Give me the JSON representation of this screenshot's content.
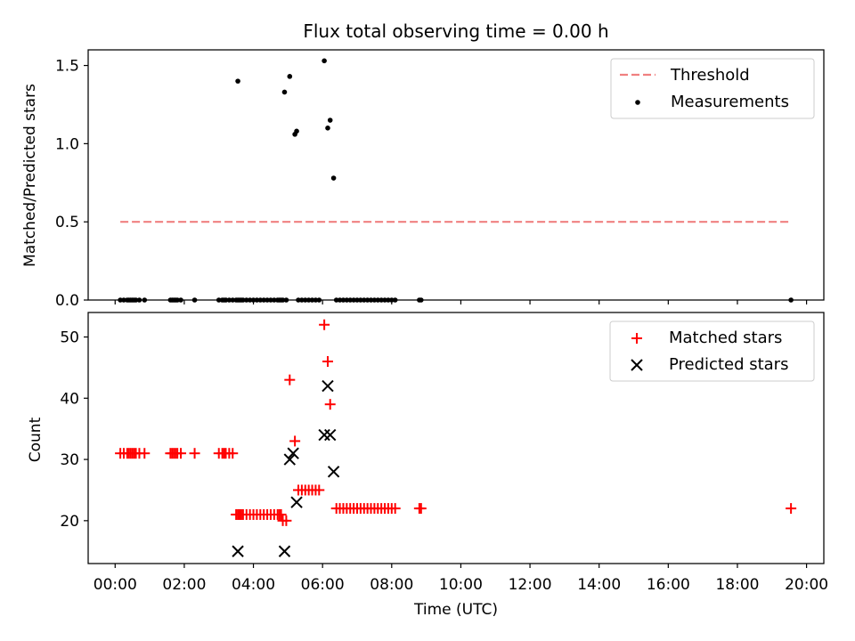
{
  "figure": {
    "title": "Flux total observing time = 0.00 h"
  },
  "chart_data": [
    {
      "type": "scatter",
      "ylabel": "Matched/Predicted stars",
      "xlabel": "",
      "xlim": [
        -0.78,
        20.5
      ],
      "ylim": [
        0,
        1.6
      ],
      "yticks": [
        0.0,
        0.5,
        1.0,
        1.5
      ],
      "ytick_labels": [
        "0.0",
        "0.5",
        "1.0",
        "1.5"
      ],
      "legend_position": "top-right",
      "threshold": {
        "name": "Threshold",
        "y": 0.5,
        "x_range": [
          0.15,
          19.55
        ],
        "color": "#f08080",
        "style": "dashed"
      },
      "series": [
        {
          "name": "Measurements",
          "marker": "dot",
          "color": "#000000",
          "points": [
            [
              0.15,
              0
            ],
            [
              0.25,
              0
            ],
            [
              0.35,
              0
            ],
            [
              0.4,
              0
            ],
            [
              0.45,
              0
            ],
            [
              0.5,
              0
            ],
            [
              0.55,
              0
            ],
            [
              0.6,
              0
            ],
            [
              0.7,
              0
            ],
            [
              0.85,
              0
            ],
            [
              1.6,
              0
            ],
            [
              1.65,
              0
            ],
            [
              1.7,
              0
            ],
            [
              1.75,
              0
            ],
            [
              1.8,
              0
            ],
            [
              1.9,
              0
            ],
            [
              2.3,
              0
            ],
            [
              3.0,
              0
            ],
            [
              3.1,
              0
            ],
            [
              3.15,
              0
            ],
            [
              3.2,
              0
            ],
            [
              3.3,
              0
            ],
            [
              3.4,
              0
            ],
            [
              3.5,
              0
            ],
            [
              3.55,
              0
            ],
            [
              3.6,
              0
            ],
            [
              3.65,
              0
            ],
            [
              3.7,
              0
            ],
            [
              3.8,
              0
            ],
            [
              3.9,
              0
            ],
            [
              4.0,
              0
            ],
            [
              4.1,
              0
            ],
            [
              4.2,
              0
            ],
            [
              4.3,
              0
            ],
            [
              4.4,
              0
            ],
            [
              4.5,
              0
            ],
            [
              4.6,
              0
            ],
            [
              4.7,
              0
            ],
            [
              4.75,
              0
            ],
            [
              4.8,
              0
            ],
            [
              4.85,
              0
            ],
            [
              4.95,
              0
            ],
            [
              5.3,
              0
            ],
            [
              5.4,
              0
            ],
            [
              5.5,
              0
            ],
            [
              5.6,
              0
            ],
            [
              5.7,
              0
            ],
            [
              5.8,
              0
            ],
            [
              5.9,
              0
            ],
            [
              6.4,
              0
            ],
            [
              6.5,
              0
            ],
            [
              6.6,
              0
            ],
            [
              6.7,
              0
            ],
            [
              6.8,
              0
            ],
            [
              6.9,
              0
            ],
            [
              7.0,
              0
            ],
            [
              7.1,
              0
            ],
            [
              7.2,
              0
            ],
            [
              7.3,
              0
            ],
            [
              7.4,
              0
            ],
            [
              7.5,
              0
            ],
            [
              7.6,
              0
            ],
            [
              7.7,
              0
            ],
            [
              7.8,
              0
            ],
            [
              7.9,
              0
            ],
            [
              8.0,
              0
            ],
            [
              8.1,
              0
            ],
            [
              8.8,
              0
            ],
            [
              8.85,
              0
            ],
            [
              19.55,
              0
            ],
            [
              3.55,
              1.4
            ],
            [
              4.9,
              1.33
            ],
            [
              5.05,
              1.43
            ],
            [
              5.2,
              1.06
            ],
            [
              5.25,
              1.08
            ],
            [
              6.05,
              1.53
            ],
            [
              6.15,
              1.1
            ],
            [
              6.22,
              1.15
            ],
            [
              6.32,
              0.78
            ]
          ]
        }
      ]
    },
    {
      "type": "scatter",
      "ylabel": "Count",
      "xlabel": "Time (UTC)",
      "xlim": [
        -0.78,
        20.5
      ],
      "ylim": [
        13,
        54
      ],
      "yticks": [
        20,
        30,
        40,
        50
      ],
      "ytick_labels": [
        "20",
        "30",
        "40",
        "50"
      ],
      "xticks": [
        0,
        2,
        4,
        6,
        8,
        10,
        12,
        14,
        16,
        18,
        20
      ],
      "xtick_labels": [
        "00:00",
        "02:00",
        "04:00",
        "06:00",
        "08:00",
        "10:00",
        "12:00",
        "14:00",
        "16:00",
        "18:00",
        "20:00"
      ],
      "legend_position": "top-right",
      "series": [
        {
          "name": "Matched stars",
          "marker": "plus",
          "color": "#ff0000",
          "points": [
            [
              0.15,
              31
            ],
            [
              0.25,
              31
            ],
            [
              0.35,
              31
            ],
            [
              0.4,
              31
            ],
            [
              0.45,
              31
            ],
            [
              0.5,
              31
            ],
            [
              0.55,
              31
            ],
            [
              0.6,
              31
            ],
            [
              0.7,
              31
            ],
            [
              0.85,
              31
            ],
            [
              1.6,
              31
            ],
            [
              1.65,
              31
            ],
            [
              1.7,
              31
            ],
            [
              1.75,
              31
            ],
            [
              1.8,
              31
            ],
            [
              1.9,
              31
            ],
            [
              2.3,
              31
            ],
            [
              3.0,
              31
            ],
            [
              3.1,
              31
            ],
            [
              3.15,
              31
            ],
            [
              3.2,
              31
            ],
            [
              3.3,
              31
            ],
            [
              3.4,
              31
            ],
            [
              3.5,
              21
            ],
            [
              3.55,
              21
            ],
            [
              3.6,
              21
            ],
            [
              3.65,
              21
            ],
            [
              3.7,
              21
            ],
            [
              3.8,
              21
            ],
            [
              3.9,
              21
            ],
            [
              4.0,
              21
            ],
            [
              4.1,
              21
            ],
            [
              4.2,
              21
            ],
            [
              4.3,
              21
            ],
            [
              4.4,
              21
            ],
            [
              4.5,
              21
            ],
            [
              4.6,
              21
            ],
            [
              4.7,
              21
            ],
            [
              4.75,
              21
            ],
            [
              4.8,
              21
            ],
            [
              4.85,
              20
            ],
            [
              4.95,
              20
            ],
            [
              5.05,
              43
            ],
            [
              5.2,
              33
            ],
            [
              5.3,
              25
            ],
            [
              5.4,
              25
            ],
            [
              5.5,
              25
            ],
            [
              5.6,
              25
            ],
            [
              5.7,
              25
            ],
            [
              5.8,
              25
            ],
            [
              5.9,
              25
            ],
            [
              6.05,
              52
            ],
            [
              6.15,
              46
            ],
            [
              6.22,
              39
            ],
            [
              6.4,
              22
            ],
            [
              6.5,
              22
            ],
            [
              6.6,
              22
            ],
            [
              6.7,
              22
            ],
            [
              6.8,
              22
            ],
            [
              6.9,
              22
            ],
            [
              7.0,
              22
            ],
            [
              7.1,
              22
            ],
            [
              7.2,
              22
            ],
            [
              7.3,
              22
            ],
            [
              7.4,
              22
            ],
            [
              7.5,
              22
            ],
            [
              7.6,
              22
            ],
            [
              7.7,
              22
            ],
            [
              7.8,
              22
            ],
            [
              7.9,
              22
            ],
            [
              8.0,
              22
            ],
            [
              8.1,
              22
            ],
            [
              8.8,
              22
            ],
            [
              8.85,
              22
            ],
            [
              19.55,
              22
            ]
          ]
        },
        {
          "name": "Predicted stars",
          "marker": "x",
          "color": "#000000",
          "points": [
            [
              3.55,
              15
            ],
            [
              4.9,
              15
            ],
            [
              5.05,
              30
            ],
            [
              5.15,
              31
            ],
            [
              5.25,
              23
            ],
            [
              6.05,
              34
            ],
            [
              6.15,
              42
            ],
            [
              6.22,
              34
            ],
            [
              6.32,
              28
            ]
          ]
        }
      ]
    }
  ]
}
